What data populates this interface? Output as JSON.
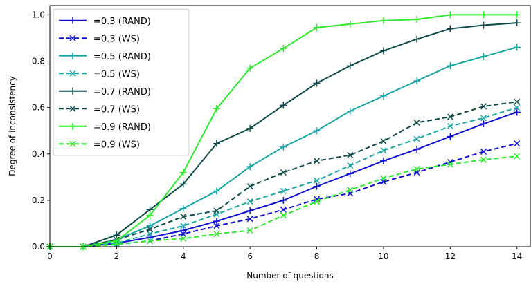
{
  "chart_data": {
    "type": "line",
    "xlabel": "Number of questions",
    "ylabel": "Degree of inconsistency",
    "xlim": [
      0,
      14.4
    ],
    "ylim": [
      0,
      1.04
    ],
    "x_ticks": [
      0,
      2,
      4,
      6,
      8,
      10,
      12,
      14
    ],
    "y_ticks": [
      0.0,
      0.2,
      0.4,
      0.6,
      0.8,
      1.0
    ],
    "x_tick_labels": [
      "0",
      "2",
      "4",
      "6",
      "8",
      "10",
      "12",
      "14"
    ],
    "y_tick_labels": [
      "0.0",
      "0.2",
      "0.4",
      "0.6",
      "0.8",
      "1.0"
    ],
    "grid": false,
    "legend_position": "top-left",
    "x": [
      0,
      1,
      2,
      3,
      4,
      5,
      6,
      7,
      8,
      9,
      10,
      11,
      12,
      13,
      14
    ],
    "series": [
      {
        "name": "=0.3 (RAND)",
        "color": "#1010d0",
        "dash": "solid",
        "marker": "plus",
        "values": [
          0,
          0,
          0.015,
          0.04,
          0.07,
          0.11,
          0.155,
          0.2,
          0.26,
          0.315,
          0.37,
          0.42,
          0.475,
          0.53,
          0.58
        ]
      },
      {
        "name": "=0.3 (WS)",
        "color": "#1010d0",
        "dash": "dashed",
        "marker": "x",
        "values": [
          0,
          0,
          0.01,
          0.025,
          0.055,
          0.09,
          0.12,
          0.16,
          0.205,
          0.23,
          0.28,
          0.32,
          0.365,
          0.41,
          0.445
        ]
      },
      {
        "name": "=0.5 (RAND)",
        "color": "#1aa5a5",
        "dash": "solid",
        "marker": "plus",
        "values": [
          0,
          0,
          0.03,
          0.09,
          0.165,
          0.24,
          0.345,
          0.43,
          0.5,
          0.585,
          0.65,
          0.715,
          0.78,
          0.82,
          0.86
        ]
      },
      {
        "name": "=0.5 (WS)",
        "color": "#1aa5a5",
        "dash": "dashed",
        "marker": "x",
        "values": [
          0,
          0,
          0.015,
          0.055,
          0.09,
          0.14,
          0.195,
          0.24,
          0.285,
          0.35,
          0.415,
          0.465,
          0.52,
          0.555,
          0.6
        ]
      },
      {
        "name": "=0.7 (RAND)",
        "color": "#0e4a4a",
        "dash": "solid",
        "marker": "plus",
        "values": [
          0,
          0,
          0.05,
          0.16,
          0.27,
          0.445,
          0.51,
          0.61,
          0.705,
          0.78,
          0.845,
          0.895,
          0.94,
          0.955,
          0.965
        ]
      },
      {
        "name": "=0.7 (WS)",
        "color": "#0e4a4a",
        "dash": "dashed",
        "marker": "x",
        "values": [
          0,
          0,
          0.03,
          0.075,
          0.13,
          0.155,
          0.26,
          0.32,
          0.37,
          0.395,
          0.455,
          0.535,
          0.56,
          0.605,
          0.625
        ]
      },
      {
        "name": "=0.9 (RAND)",
        "color": "#2ee82e",
        "dash": "solid",
        "marker": "plus",
        "values": [
          0,
          0,
          0.025,
          0.135,
          0.32,
          0.595,
          0.77,
          0.855,
          0.945,
          0.96,
          0.975,
          0.98,
          1.0,
          1.0,
          1.0
        ]
      },
      {
        "name": "=0.9 (WS)",
        "color": "#2ee82e",
        "dash": "dashed",
        "marker": "x",
        "values": [
          0,
          0,
          0.01,
          0.025,
          0.035,
          0.055,
          0.07,
          0.135,
          0.195,
          0.245,
          0.295,
          0.335,
          0.355,
          0.375,
          0.39
        ]
      }
    ]
  }
}
